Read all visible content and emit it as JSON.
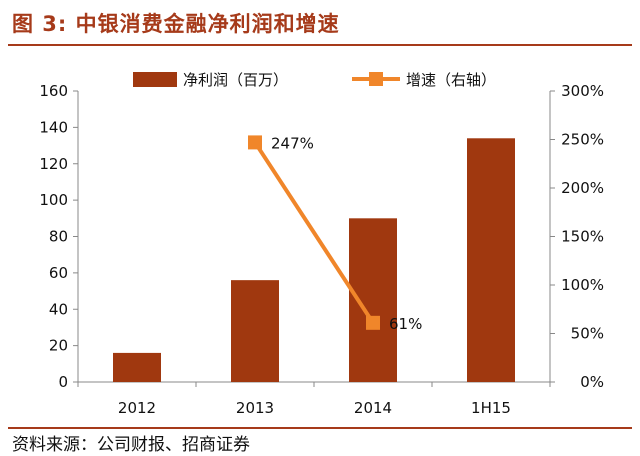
{
  "figure": {
    "title": "图 3:  中银消费金融净利润和增速",
    "source": "资料来源：公司财报、招商证券"
  },
  "chart_data": {
    "type": "bar",
    "categories": [
      "2012",
      "2013",
      "2014",
      "1H15"
    ],
    "series": [
      {
        "name": "净利润（百万）",
        "type": "bar",
        "axis": "left",
        "color": "#a0380f",
        "values": [
          16,
          56,
          90,
          134
        ]
      },
      {
        "name": "增速（右轴）",
        "type": "line",
        "axis": "right",
        "color": "#f0862a",
        "values": [
          null,
          247,
          61,
          null
        ],
        "labels": [
          null,
          "247%",
          "61%",
          null
        ]
      }
    ],
    "y_left": {
      "min": 0,
      "max": 160,
      "ticks": [
        "0",
        "20",
        "40",
        "60",
        "80",
        "100",
        "120",
        "140",
        "160"
      ]
    },
    "y_right": {
      "min": 0,
      "max": 300,
      "ticks": [
        "0%",
        "50%",
        "100%",
        "150%",
        "200%",
        "250%",
        "300%"
      ]
    },
    "grid": false,
    "legend": "top"
  }
}
